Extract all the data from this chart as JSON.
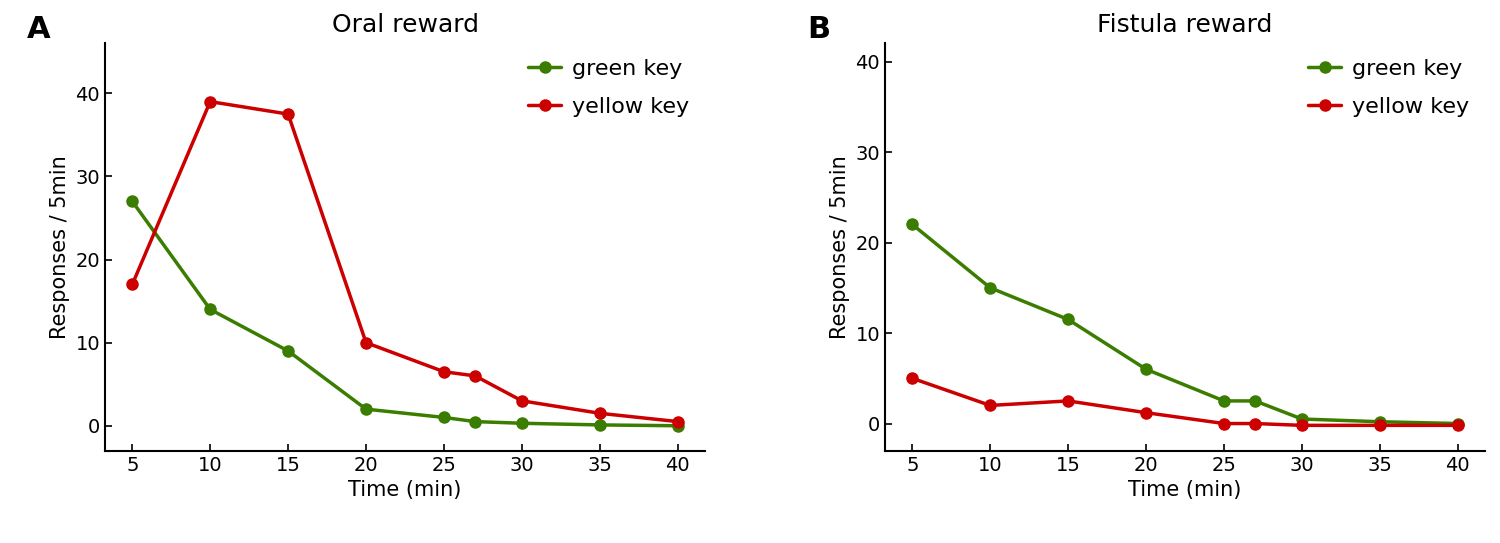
{
  "panel_A": {
    "title": "Oral reward",
    "label": "A",
    "green_key": {
      "x": [
        5,
        10,
        15,
        20,
        25,
        27,
        30,
        35,
        40
      ],
      "y": [
        27,
        14,
        9,
        2,
        1,
        0.5,
        0.3,
        0.1,
        0
      ],
      "label": "green key",
      "color": "#3a7d00",
      "linewidth": 2.5,
      "markersize": 8
    },
    "yellow_key": {
      "x": [
        5,
        10,
        15,
        20,
        25,
        27,
        30,
        35,
        40
      ],
      "y": [
        17,
        39,
        37.5,
        10,
        6.5,
        6,
        3,
        1.5,
        0.5
      ],
      "label": "yellow key",
      "color": "#cc0000",
      "linewidth": 2.5,
      "markersize": 8
    },
    "ylabel": "Responses / 5min",
    "xlabel": "Time (min)",
    "ylim": [
      -3,
      46
    ],
    "yticks": [
      0,
      10,
      20,
      30,
      40
    ],
    "xticks": [
      5,
      10,
      15,
      20,
      25,
      30,
      35,
      40
    ]
  },
  "panel_B": {
    "title": "Fistula reward",
    "label": "B",
    "green_key": {
      "x": [
        5,
        10,
        15,
        20,
        25,
        27,
        30,
        35,
        40
      ],
      "y": [
        22,
        15,
        11.5,
        6,
        2.5,
        2.5,
        0.5,
        0.2,
        0
      ],
      "label": "green key",
      "color": "#3a7d00",
      "linewidth": 2.5,
      "markersize": 8
    },
    "yellow_key": {
      "x": [
        5,
        10,
        15,
        20,
        25,
        27,
        30,
        35,
        40
      ],
      "y": [
        5,
        2,
        2.5,
        1.2,
        0,
        0,
        -0.2,
        -0.2,
        -0.2
      ],
      "label": "yellow key",
      "color": "#cc0000",
      "linewidth": 2.5,
      "markersize": 8
    },
    "ylabel": "Responses / 5min",
    "xlabel": "Time (min)",
    "ylim": [
      -3,
      42
    ],
    "yticks": [
      0,
      10,
      20,
      30,
      40
    ],
    "xticks": [
      5,
      10,
      15,
      20,
      25,
      30,
      35,
      40
    ]
  },
  "background_color": "#ffffff",
  "title_fontsize": 18,
  "label_fontsize": 22,
  "axis_fontsize": 15,
  "tick_fontsize": 14,
  "legend_fontsize": 16
}
